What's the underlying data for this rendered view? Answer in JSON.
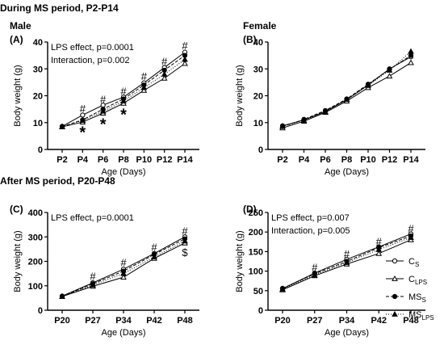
{
  "sections": {
    "top": "During MS period, P2-P14",
    "bottom": "After MS period, P20-P48"
  },
  "legend": [
    {
      "main": "C",
      "sub": "S",
      "marker": "open-circle",
      "dash": "none"
    },
    {
      "main": "C",
      "sub": "LPS",
      "marker": "open-triangle",
      "dash": "none"
    },
    {
      "main": "MS",
      "sub": "S",
      "marker": "filled-circle",
      "dash": "4,2"
    },
    {
      "main": "MS",
      "sub": "LPS",
      "marker": "filled-triangle",
      "dash": "1,2"
    }
  ],
  "chart_data": [
    {
      "type": "line",
      "panel": "(A)",
      "title": "Male",
      "xlabel": "Age (Days)",
      "ylabel": "Body weight (g)",
      "categories": [
        "P2",
        "P4",
        "P6",
        "P8",
        "P10",
        "P12",
        "P14"
      ],
      "ylim": [
        0,
        40
      ],
      "yticks": [
        0,
        10,
        20,
        30,
        40
      ],
      "annotations": [
        "LPS effect, p=0.0001",
        "Interaction, p=0.002"
      ],
      "series": [
        {
          "values": [
            8.6,
            12.8,
            16.5,
            19.5,
            24.8,
            30.5,
            36.2
          ]
        },
        {
          "values": [
            8.4,
            10.2,
            13.5,
            17.2,
            22.0,
            26.5,
            32.0
          ]
        },
        {
          "values": [
            8.5,
            11.0,
            15.0,
            18.8,
            24.0,
            29.5,
            35.0
          ]
        },
        {
          "values": [
            8.5,
            10.8,
            14.2,
            18.0,
            23.0,
            28.0,
            33.5
          ]
        }
      ],
      "marks": [
        {
          "label": "#",
          "x": "P4",
          "y": 15.0
        },
        {
          "label": "#",
          "x": "P6",
          "y": 18.5
        },
        {
          "label": "#",
          "x": "P8",
          "y": 21.5
        },
        {
          "label": "#",
          "x": "P10",
          "y": 27.0
        },
        {
          "label": "#",
          "x": "P12",
          "y": 32.7
        },
        {
          "label": "#",
          "x": "P14",
          "y": 38.5
        },
        {
          "label": "*",
          "x": "P4",
          "y": 6.8
        },
        {
          "label": "*",
          "x": "P6",
          "y": 9.8
        },
        {
          "label": "*",
          "x": "P8",
          "y": 13.4
        }
      ]
    },
    {
      "type": "line",
      "panel": "(B)",
      "title": "Female",
      "xlabel": "Age (Days)",
      "ylabel": "Body weight (g)",
      "categories": [
        "P2",
        "P4",
        "P6",
        "P8",
        "P10",
        "P12",
        "P14"
      ],
      "ylim": [
        0,
        40
      ],
      "yticks": [
        0,
        10,
        20,
        30,
        40
      ],
      "annotations": [],
      "series": [
        {
          "values": [
            8.8,
            11.0,
            14.2,
            18.5,
            24.0,
            30.0,
            34.5
          ]
        },
        {
          "values": [
            8.0,
            10.5,
            13.8,
            18.0,
            23.0,
            27.3,
            32.3
          ]
        },
        {
          "values": [
            8.5,
            11.2,
            14.5,
            18.8,
            24.3,
            29.8,
            35.0
          ]
        },
        {
          "values": [
            8.6,
            10.8,
            14.0,
            18.6,
            23.8,
            29.5,
            36.5
          ]
        }
      ],
      "marks": []
    },
    {
      "type": "line",
      "panel": "(C)",
      "title": "",
      "xlabel": "Age (Days)",
      "ylabel": "Body weight (g)",
      "categories": [
        "P20",
        "P27",
        "P34",
        "P42",
        "P48"
      ],
      "ylim": [
        0,
        400
      ],
      "yticks": [
        0,
        100,
        200,
        300,
        400
      ],
      "annotations": [
        "LPS effect, p=0.0001"
      ],
      "series": [
        {
          "values": [
            58,
            112,
            168,
            232,
            300
          ]
        },
        {
          "values": [
            56,
            98,
            135,
            212,
            275
          ]
        },
        {
          "values": [
            57,
            108,
            160,
            228,
            292
          ]
        },
        {
          "values": [
            56,
            103,
            150,
            218,
            283
          ]
        }
      ],
      "marks": [
        {
          "label": "#",
          "x": "P27",
          "y": 137
        },
        {
          "label": "#",
          "x": "P34",
          "y": 193
        },
        {
          "label": "#",
          "x": "P42",
          "y": 257
        },
        {
          "label": "#",
          "x": "P48",
          "y": 323
        },
        {
          "label": "$",
          "x": "P48",
          "y": 235
        }
      ]
    },
    {
      "type": "line",
      "panel": "(D)",
      "title": "",
      "xlabel": "Age (Days)",
      "ylabel": "Body weight (g)",
      "categories": [
        "P20",
        "P27",
        "P34",
        "P42",
        "P48"
      ],
      "ylim": [
        0,
        250
      ],
      "yticks": [
        0,
        50,
        100,
        150,
        200,
        250
      ],
      "annotations": [
        "LPS effect, p=0.007",
        "Interaction, p=0.005"
      ],
      "series": [
        {
          "values": [
            55,
            95,
            130,
            162,
            195
          ]
        },
        {
          "values": [
            52,
            88,
            118,
            145,
            180
          ]
        },
        {
          "values": [
            56,
            93,
            125,
            160,
            190
          ]
        },
        {
          "values": [
            54,
            90,
            122,
            155,
            186
          ]
        }
      ],
      "marks": [
        {
          "label": "#",
          "x": "P27",
          "y": 108
        },
        {
          "label": "#",
          "x": "P34",
          "y": 143
        },
        {
          "label": "#",
          "x": "P42",
          "y": 175
        },
        {
          "label": "#",
          "x": "P48",
          "y": 208
        }
      ]
    }
  ]
}
